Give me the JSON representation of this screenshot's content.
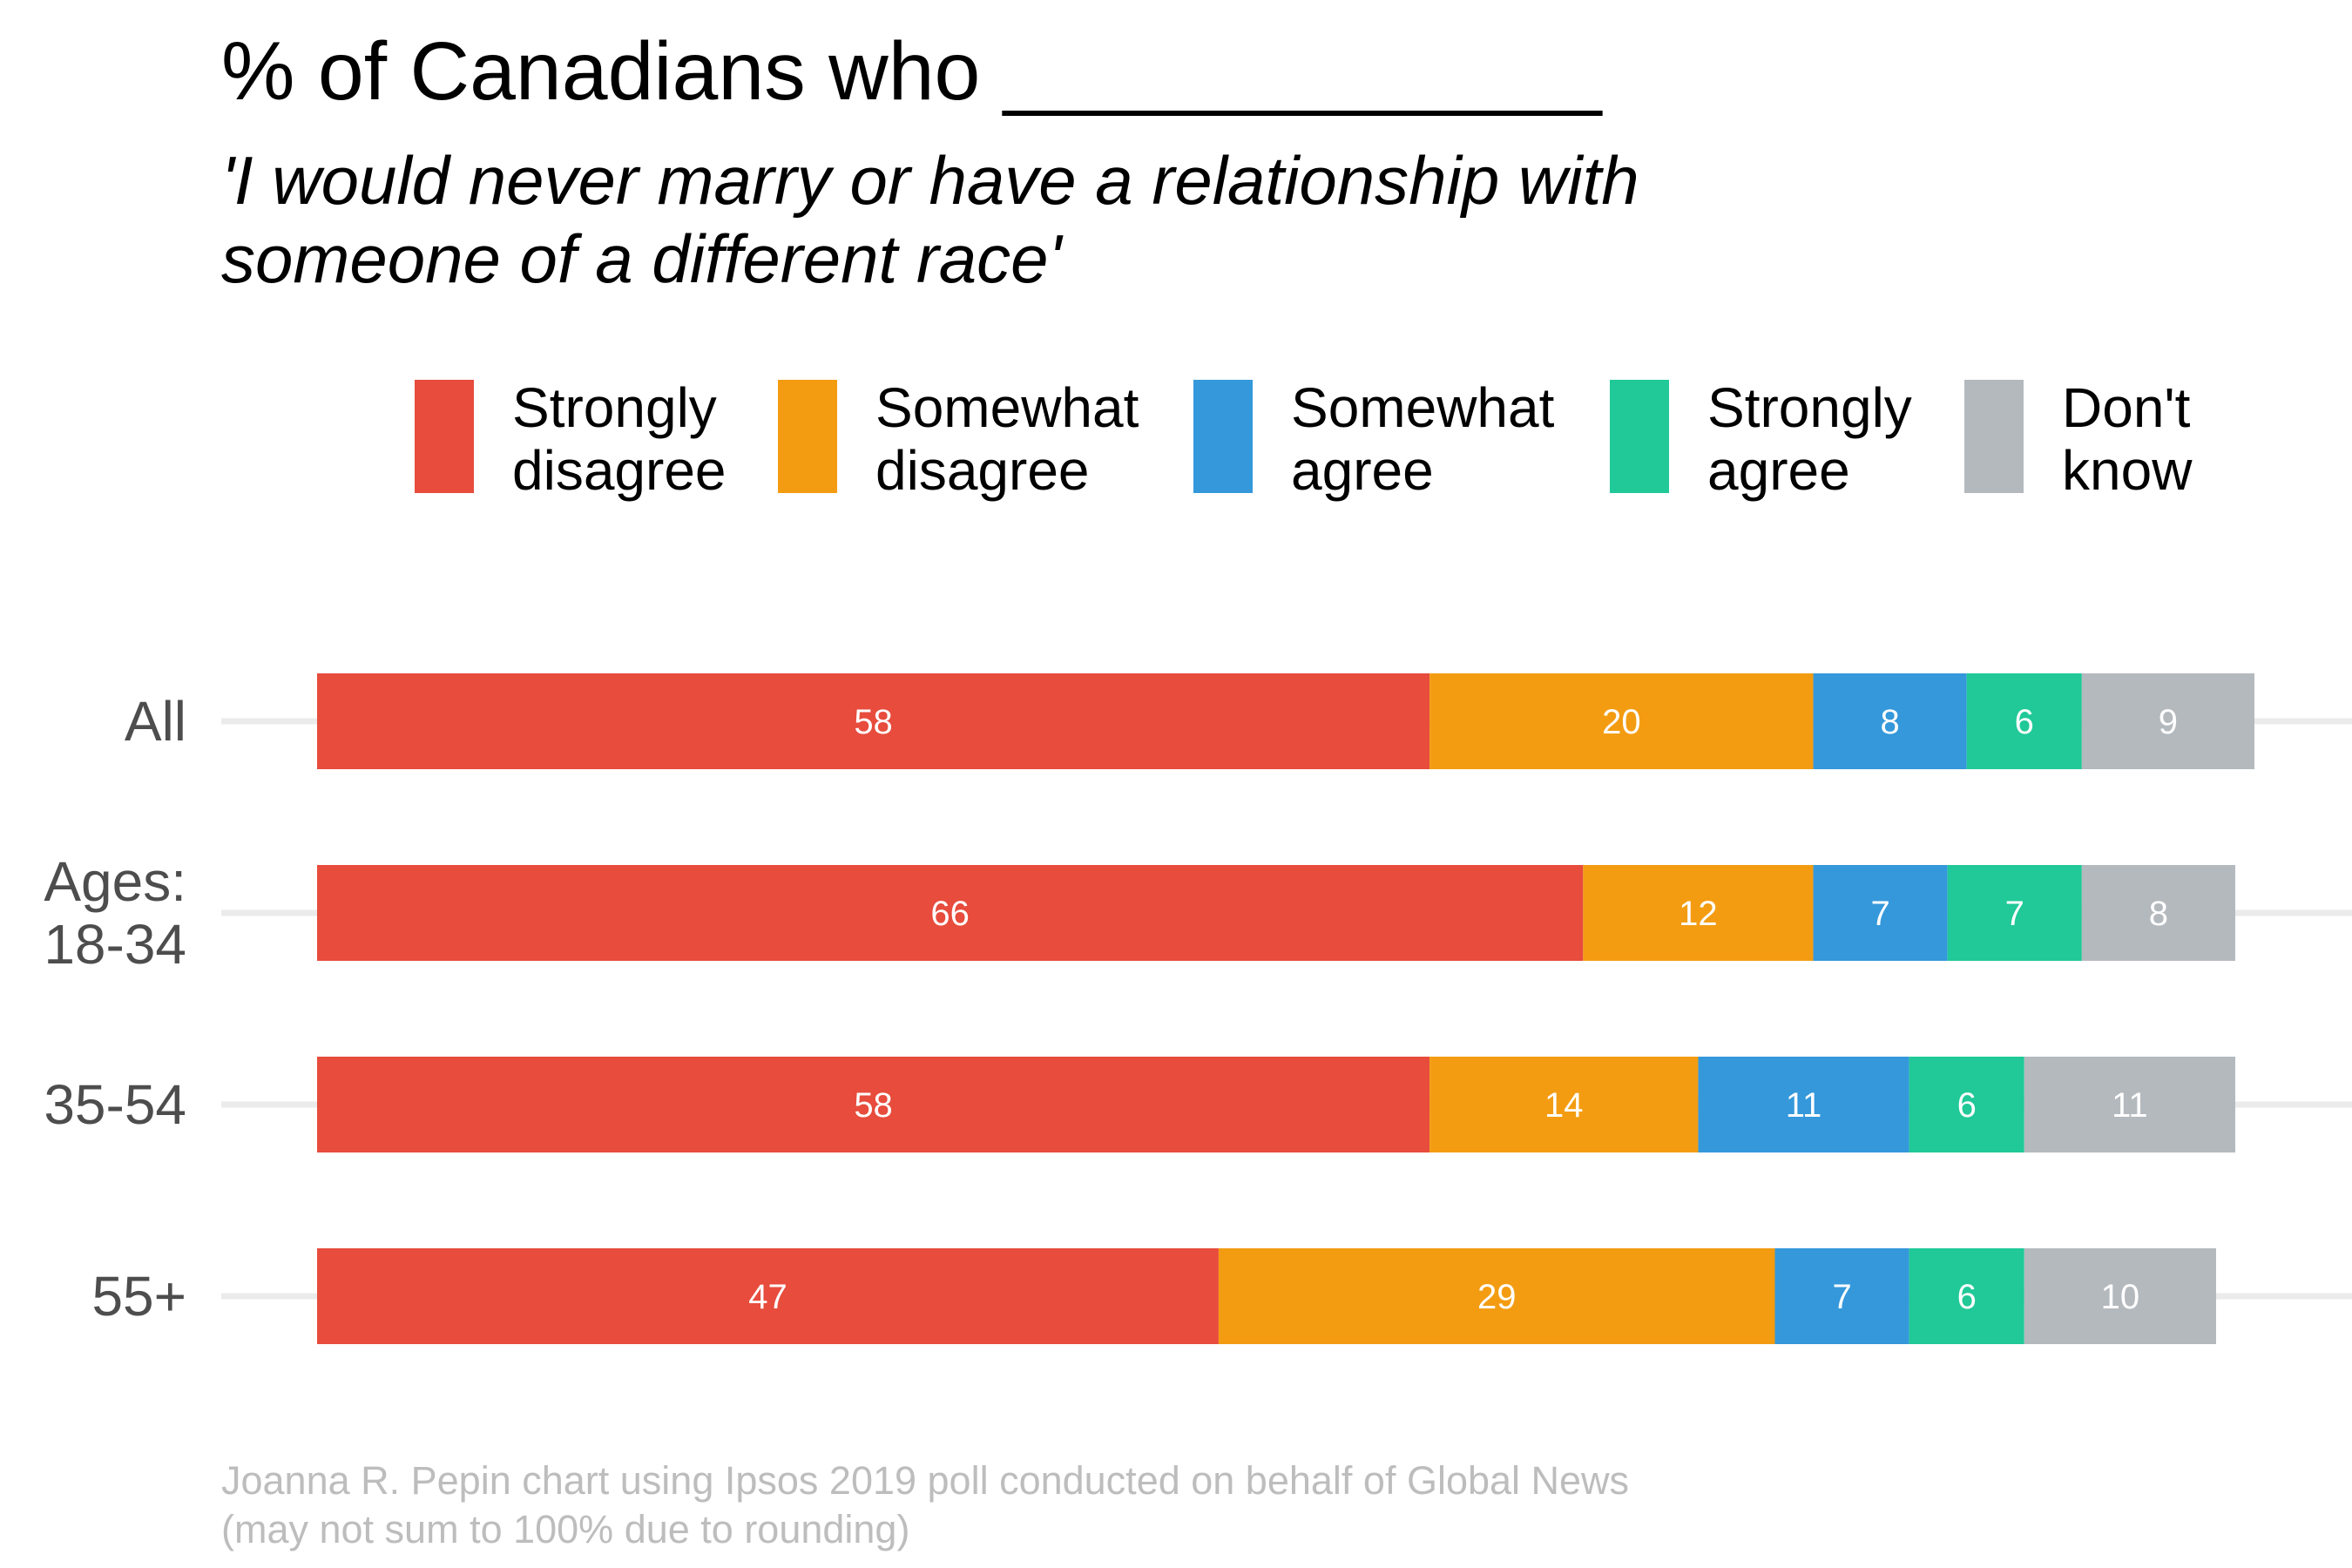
{
  "chart_data": {
    "type": "bar",
    "orientation": "horizontal",
    "stacked": true,
    "title": "% of Canadians who _____________",
    "subtitle_lines": [
      "'I would never marry or have a relationship with",
      "someone of a different race'"
    ],
    "categories": [
      [
        "All"
      ],
      [
        "Ages:",
        "18-34"
      ],
      [
        "35-54"
      ],
      [
        "55+"
      ]
    ],
    "series": [
      {
        "name": "Strongly\ndisagree",
        "color": "#E74C3C",
        "values": [
          58,
          66,
          58,
          47
        ]
      },
      {
        "name": "Somewhat\ndisagree",
        "color": "#F39C12",
        "values": [
          20,
          12,
          14,
          29
        ]
      },
      {
        "name": "Somewhat\nagree",
        "color": "#3498DB",
        "values": [
          8,
          7,
          11,
          7
        ]
      },
      {
        "name": "Strongly\nagree",
        "color": "#20C997",
        "values": [
          6,
          7,
          6,
          6
        ]
      },
      {
        "name": "Don't\nknow",
        "color": "#B4B9BE",
        "values": [
          9,
          8,
          11,
          10
        ]
      }
    ],
    "xlim": [
      0,
      100
    ],
    "legend_position": "top",
    "grid": true,
    "label_color": "#ffffff",
    "gridline_color": "#ebebeb"
  },
  "caption": {
    "line1": "Joanna R. Pepin chart using Ipsos 2019 poll conducted on behalf of Global News",
    "line2": "(may not sum to 100% due to rounding)"
  }
}
